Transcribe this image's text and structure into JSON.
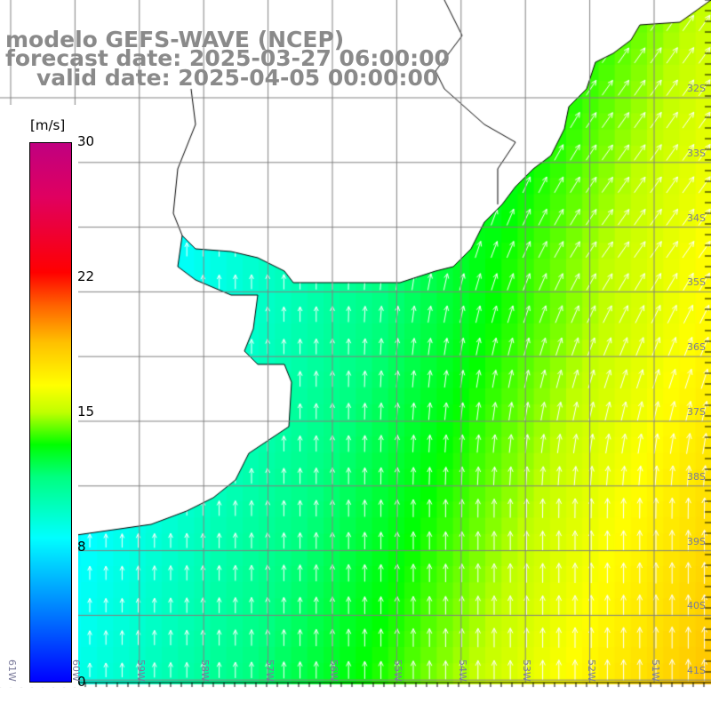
{
  "title": {
    "model": "modelo GEFS-WAVE (NCEP)",
    "forecast": "forecast date: 2025-03-27 06:00:00",
    "valid": "valid date: 2025-04-05 00:00:00"
  },
  "colorbar": {
    "unit": "[m/s]",
    "ticks": [
      "30",
      "22",
      "15",
      "8",
      "0"
    ],
    "tick_values": [
      30,
      22,
      15,
      8,
      0
    ],
    "range": [
      0,
      30
    ]
  },
  "lat_labels": [
    "32S",
    "33S",
    "34S",
    "35S",
    "36S",
    "37S",
    "38S",
    "39S",
    "40S",
    "41S"
  ],
  "lon_labels": [
    "61W",
    "60W",
    "59W",
    "58W",
    "57W",
    "56W",
    "55W",
    "54W",
    "53W",
    "52W",
    "51W"
  ],
  "colors": {
    "land": "#ffffff",
    "coast": "#000000",
    "grid": "#808080",
    "arrows": "#ffffff"
  }
}
